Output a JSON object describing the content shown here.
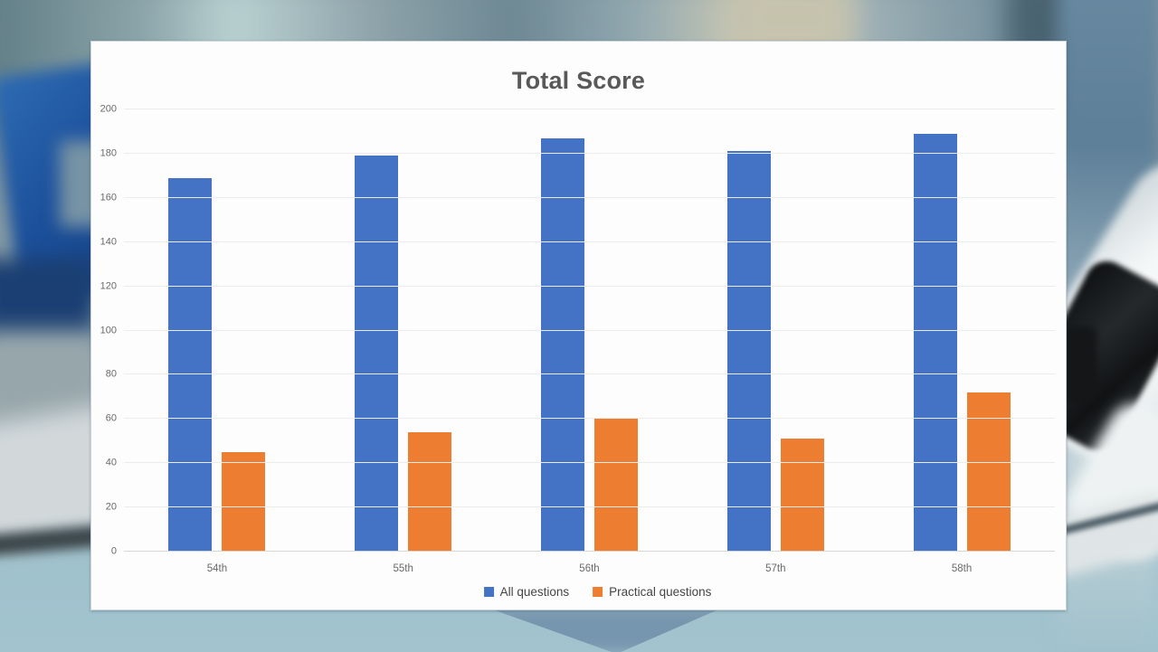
{
  "chart_data": {
    "type": "bar",
    "title": "Total Score",
    "categories": [
      "54th",
      "55th",
      "56th",
      "57th",
      "58th"
    ],
    "series": [
      {
        "name": "All questions",
        "color": "#4472C4",
        "values": [
          169,
          179,
          187,
          181,
          189
        ]
      },
      {
        "name": "Practical questions",
        "color": "#ED7D31",
        "values": [
          45,
          54,
          60,
          51,
          72
        ]
      }
    ],
    "xlabel": "",
    "ylabel": "",
    "ylim": [
      0,
      200
    ],
    "yticks": [
      0,
      20,
      40,
      60,
      80,
      100,
      120,
      140,
      160,
      180,
      200
    ],
    "grid": true,
    "legend_position": "bottom"
  },
  "background": {
    "description": "blurred laboratory scene with microscope and camera lens"
  }
}
